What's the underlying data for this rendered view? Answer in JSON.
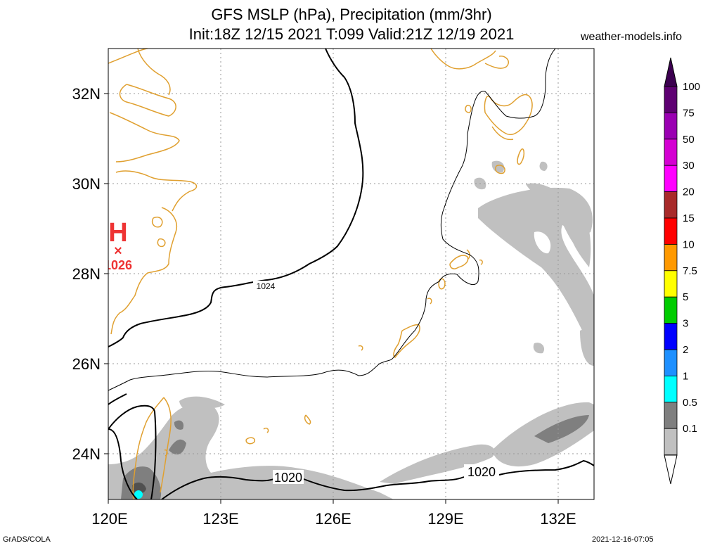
{
  "header": {
    "title_line1": "GFS MSLP (hPa), Precipitation (mm/3hr)",
    "title_line2": "Init:18Z 12/15 2021 T:099 Valid:21Z 12/19 2021",
    "site": "weather-models.info"
  },
  "footer": {
    "credit": "GrADS/COLA",
    "timestamp": "2021-12-16-07:05"
  },
  "map": {
    "lat_labels": [
      "32N",
      "30N",
      "28N",
      "26N",
      "24N"
    ],
    "lon_labels": [
      "120E",
      "123E",
      "126E",
      "129E",
      "132E"
    ],
    "lon_range": [
      120,
      133
    ],
    "lat_range": [
      23,
      33
    ],
    "high_center": {
      "symbol": "H",
      "pressure": "1026"
    },
    "isobar_labels": [
      "1024",
      "1020",
      "1020"
    ],
    "colors": {
      "coastline": "#e0a030",
      "isobar": "#000000",
      "high": "#ee3333",
      "grid": "#999999"
    }
  },
  "legend": {
    "labels": [
      "100",
      "75",
      "50",
      "30",
      "20",
      "15",
      "10",
      "7.5",
      "5",
      "3",
      "2",
      "1",
      "0.5",
      "0.1"
    ],
    "colors": [
      "#5e0072",
      "#9a00b2",
      "#d400d2",
      "#ff00ff",
      "#a82a2a",
      "#ff0000",
      "#ff9900",
      "#ffff00",
      "#00cc00",
      "#0000ff",
      "#1e90ff",
      "#00ffff",
      "#7f7f7f",
      "#c0c0c0"
    ]
  }
}
